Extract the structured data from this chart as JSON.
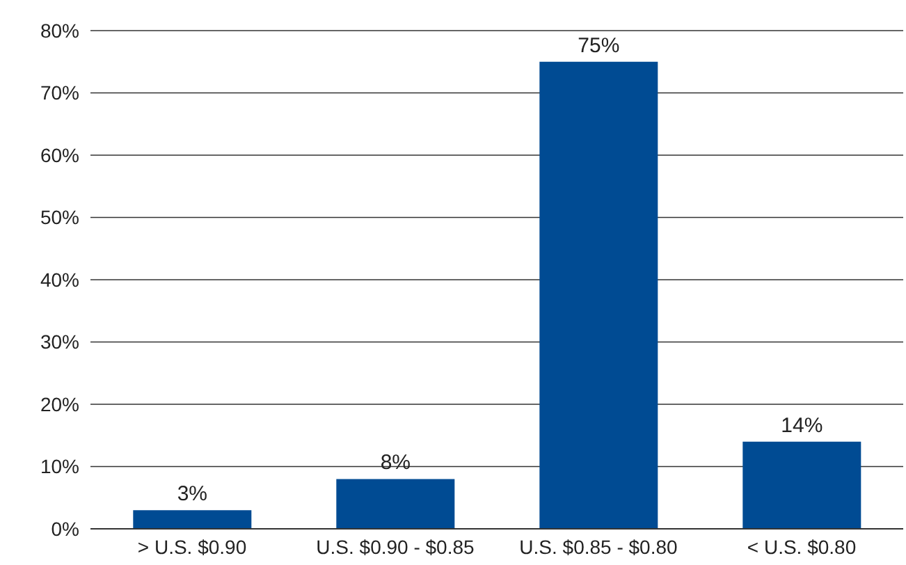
{
  "chart_data": {
    "type": "bar",
    "categories": [
      "> U.S. $0.90",
      "U.S. $0.90 - $0.85",
      "U.S. $0.85 - $0.80",
      "< U.S. $0.80"
    ],
    "values": [
      3,
      8,
      75,
      14
    ],
    "value_labels": [
      "3%",
      "8%",
      "75%",
      "14%"
    ],
    "color": "#004b93",
    "ylim": [
      0,
      80
    ],
    "yticks": [
      {
        "value": 0,
        "label": "0%"
      },
      {
        "value": 10,
        "label": "10%"
      },
      {
        "value": 20,
        "label": "20%"
      },
      {
        "value": 30,
        "label": "30%"
      },
      {
        "value": 40,
        "label": "40%"
      },
      {
        "value": 50,
        "label": "50%"
      },
      {
        "value": 60,
        "label": "60%"
      },
      {
        "value": 70,
        "label": "70%"
      },
      {
        "value": 80,
        "label": "80%"
      }
    ],
    "grid": "y"
  }
}
